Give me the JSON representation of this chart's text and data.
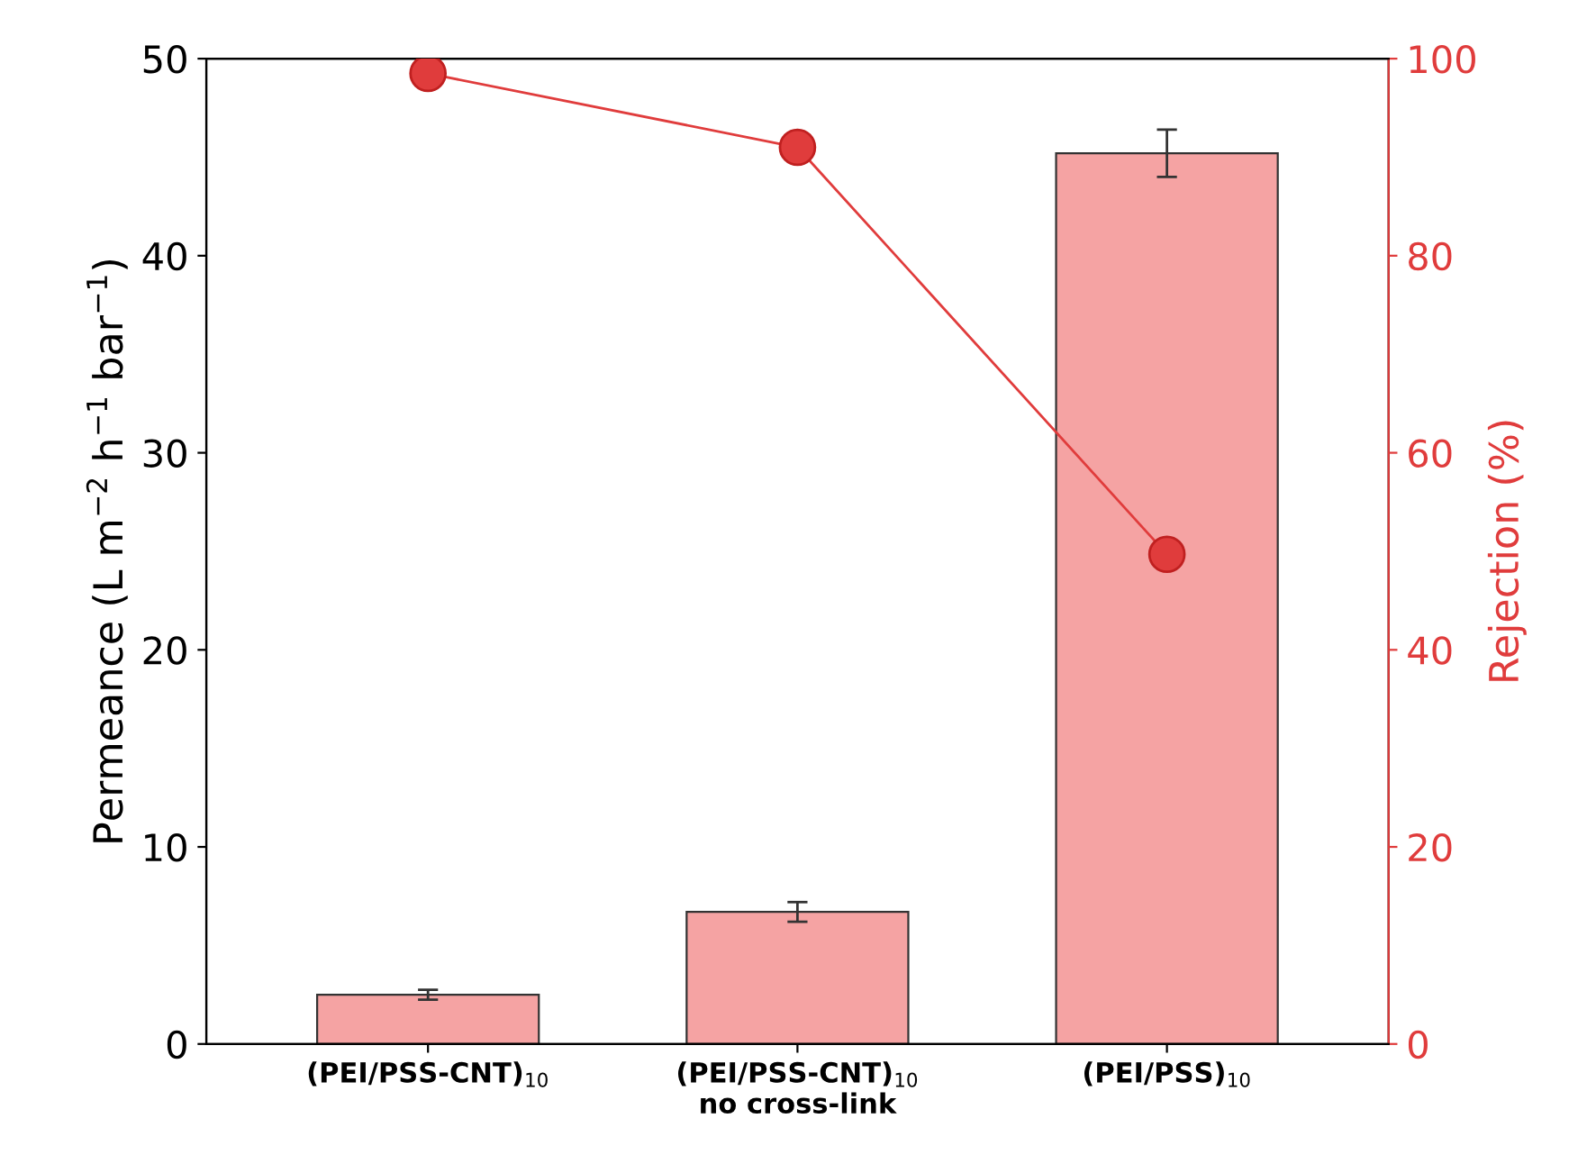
{
  "chart_data": {
    "type": "bar",
    "categories": [
      "(PEI/PSS-CNT)$_{10}$",
      "(PEI/PSS-CNT)$_{10}$\nno cross-link",
      "(PEI/PSS)$_{10}$"
    ],
    "ylabel": "Permeance (L m$^{−2}$ h$^{−1}$ bar$^{−1}$)",
    "y2label": "Rejection (%)",
    "series": [
      {
        "color": "#f5a3a3",
        "values": [
          2.5,
          6.7,
          45.2
        ],
        "errors": [
          0.25,
          0.5,
          1.2
        ]
      },
      {
        "type": "line",
        "axis": "y2",
        "color": "#e03c3c",
        "values": [
          98.5,
          91.0,
          49.7
        ],
        "marker": "circle",
        "line_style": "solid"
      }
    ],
    "ylim": [
      0,
      50
    ],
    "yticks": [
      0,
      10,
      20,
      30,
      40,
      50
    ],
    "y2lim": [
      0,
      100
    ],
    "y2ticks": [
      0,
      20,
      40,
      60,
      80,
      100
    ],
    "grid": false,
    "legend": false
  }
}
